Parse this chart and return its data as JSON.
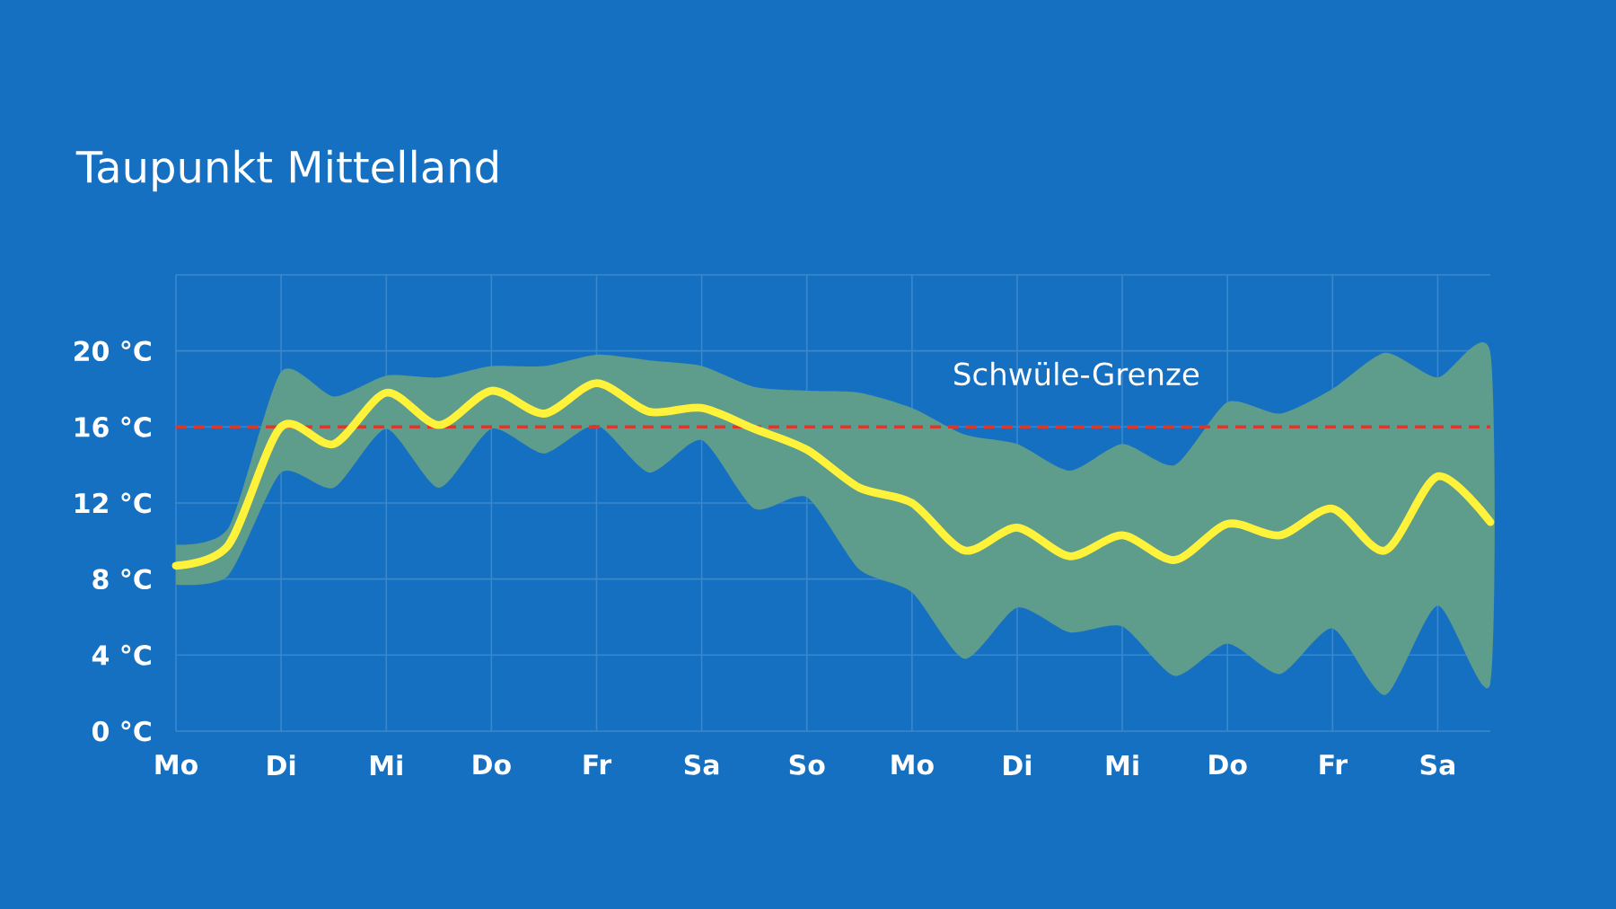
{
  "chart_data": {
    "type": "line",
    "title": "Taupunkt Mittelland",
    "categories": [
      "Mo",
      null,
      "Di",
      null,
      "Mi",
      null,
      "Do",
      null,
      "Fr",
      null,
      "Sa",
      null,
      "So",
      null,
      "Mo",
      null,
      "Di",
      null,
      "Mi",
      null,
      "Do",
      null,
      "Fr",
      null,
      "Sa",
      null
    ],
    "series": [
      {
        "color": "#fff23a",
        "values": [
          8.7,
          9.8,
          16.0,
          15.1,
          17.8,
          16.1,
          17.9,
          16.7,
          18.3,
          16.8,
          17.0,
          15.9,
          14.8,
          12.8,
          12.0,
          9.5,
          10.7,
          9.2,
          10.3,
          9.0,
          10.9,
          10.3,
          11.7,
          9.5,
          13.4,
          11.0
        ],
        "upper": [
          9.8,
          10.7,
          18.9,
          17.6,
          18.7,
          18.6,
          19.2,
          19.2,
          19.8,
          19.5,
          19.2,
          18.1,
          17.9,
          17.8,
          17.0,
          15.6,
          15.1,
          13.7,
          15.1,
          14.0,
          17.3,
          16.7,
          18.0,
          19.9,
          18.6,
          19.9
        ],
        "lower": [
          7.7,
          8.2,
          13.6,
          12.8,
          15.9,
          12.8,
          15.9,
          14.6,
          16.1,
          13.6,
          15.3,
          11.7,
          12.3,
          8.5,
          7.3,
          3.8,
          6.5,
          5.2,
          5.5,
          2.9,
          4.6,
          3.0,
          5.4,
          1.9,
          6.6,
          2.5
        ]
      }
    ],
    "ylim": [
      0,
      24
    ],
    "yticks": [
      {
        "value": 0,
        "label": "0 °C"
      },
      {
        "value": 4,
        "label": "4 °C"
      },
      {
        "value": 8,
        "label": "8 °C"
      },
      {
        "value": 12,
        "label": "12 °C"
      },
      {
        "value": 16,
        "label": "16 °C"
      },
      {
        "value": 20,
        "label": "20 °C"
      },
      {
        "value": 24,
        "label": null
      }
    ],
    "ref_lines": [
      {
        "axis": "y",
        "value": 16,
        "label": "Schwüle-Grenze",
        "color": "#d63a2e",
        "line_style": "dashed"
      }
    ],
    "grid": true
  }
}
